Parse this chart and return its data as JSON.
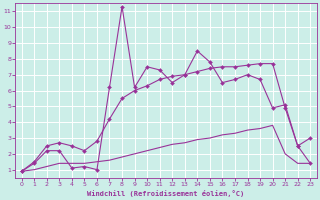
{
  "xlabel": "Windchill (Refroidissement éolien,°C)",
  "xlim": [
    -0.5,
    23.5
  ],
  "ylim": [
    0.5,
    11.5
  ],
  "xticks": [
    0,
    1,
    2,
    3,
    4,
    5,
    6,
    7,
    8,
    9,
    10,
    11,
    12,
    13,
    14,
    15,
    16,
    17,
    18,
    19,
    20,
    21,
    22,
    23
  ],
  "yticks": [
    1,
    2,
    3,
    4,
    5,
    6,
    7,
    8,
    9,
    10,
    11
  ],
  "background_color": "#cceee8",
  "grid_color": "#ffffff",
  "line_color": "#993399",
  "x_main": [
    0,
    1,
    2,
    3,
    4,
    5,
    6,
    7,
    8,
    9,
    10,
    11,
    12,
    13,
    14,
    15,
    16,
    17,
    18,
    19,
    20,
    21,
    22,
    23
  ],
  "y_main": [
    0.9,
    1.4,
    2.2,
    2.2,
    1.1,
    1.2,
    1.0,
    6.2,
    11.3,
    6.2,
    7.5,
    7.3,
    6.5,
    7.0,
    8.5,
    7.8,
    6.5,
    6.7,
    7.0,
    6.7,
    4.9,
    5.1,
    2.5,
    3.0
  ],
  "x_upper": [
    0,
    1,
    2,
    3,
    4,
    5,
    6,
    7,
    8,
    9,
    10,
    11,
    12,
    13,
    14,
    15,
    16,
    17,
    18,
    19,
    20,
    21,
    22,
    23
  ],
  "y_upper": [
    0.9,
    1.5,
    2.5,
    2.7,
    2.5,
    2.2,
    2.8,
    4.2,
    5.5,
    6.0,
    6.3,
    6.7,
    6.9,
    7.0,
    7.2,
    7.4,
    7.5,
    7.5,
    7.6,
    7.7,
    7.7,
    4.9,
    2.5,
    1.4
  ],
  "x_lower": [
    0,
    1,
    2,
    3,
    4,
    5,
    6,
    7,
    8,
    9,
    10,
    11,
    12,
    13,
    14,
    15,
    16,
    17,
    18,
    19,
    20,
    21,
    22,
    23
  ],
  "y_lower": [
    0.9,
    1.0,
    1.2,
    1.4,
    1.4,
    1.4,
    1.5,
    1.6,
    1.8,
    2.0,
    2.2,
    2.4,
    2.6,
    2.7,
    2.9,
    3.0,
    3.2,
    3.3,
    3.5,
    3.6,
    3.8,
    2.0,
    1.4,
    1.4
  ]
}
